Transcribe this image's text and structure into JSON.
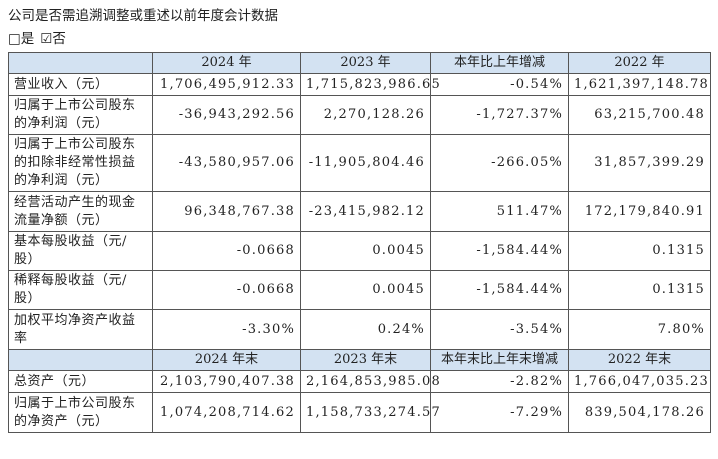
{
  "header": {
    "title": "公司是否需追溯调整或重述以前年度会计数据",
    "options": [
      "□是",
      "☑否"
    ]
  },
  "table": {
    "head1": [
      "2024 年",
      "2023 年",
      "本年比上年增减",
      "2022 年"
    ],
    "rows": [
      [
        "营业收入（元）",
        "1,706,495,912.33",
        "1,715,823,986.65",
        "-0.54%",
        "1,621,397,148.78"
      ],
      [
        "归属于上市公司股东的净利润（元）",
        "-36,943,292.56",
        "2,270,128.26",
        "-1,727.37%",
        "63,215,700.48"
      ],
      [
        "归属于上市公司股东的扣除非经常性损益的净利润（元）",
        "-43,580,957.06",
        "-11,905,804.46",
        "-266.05%",
        "31,857,399.29"
      ],
      [
        "经营活动产生的现金流量净额（元）",
        "96,348,767.38",
        "-23,415,982.12",
        "511.47%",
        "172,179,840.91"
      ],
      [
        "基本每股收益（元/股）",
        "-0.0668",
        "0.0045",
        "-1,584.44%",
        "0.1315"
      ],
      [
        "稀释每股收益（元/股）",
        "-0.0668",
        "0.0045",
        "-1,584.44%",
        "0.1315"
      ],
      [
        "加权平均净资产收益率",
        "-3.30%",
        "0.24%",
        "-3.54%",
        "7.80%"
      ]
    ],
    "head2": [
      "2024 年末",
      "2023 年末",
      "本年末比上年末增减",
      "2022 年末"
    ],
    "rows2": [
      [
        "总资产（元）",
        "2,103,790,407.38",
        "2,164,853,985.08",
        "-2.82%",
        "1,766,047,035.23"
      ],
      [
        "归属于上市公司股东的净资产（元）",
        "1,074,208,714.62",
        "1,158,733,274.57",
        "-7.29%",
        "839,504,178.26"
      ]
    ]
  }
}
